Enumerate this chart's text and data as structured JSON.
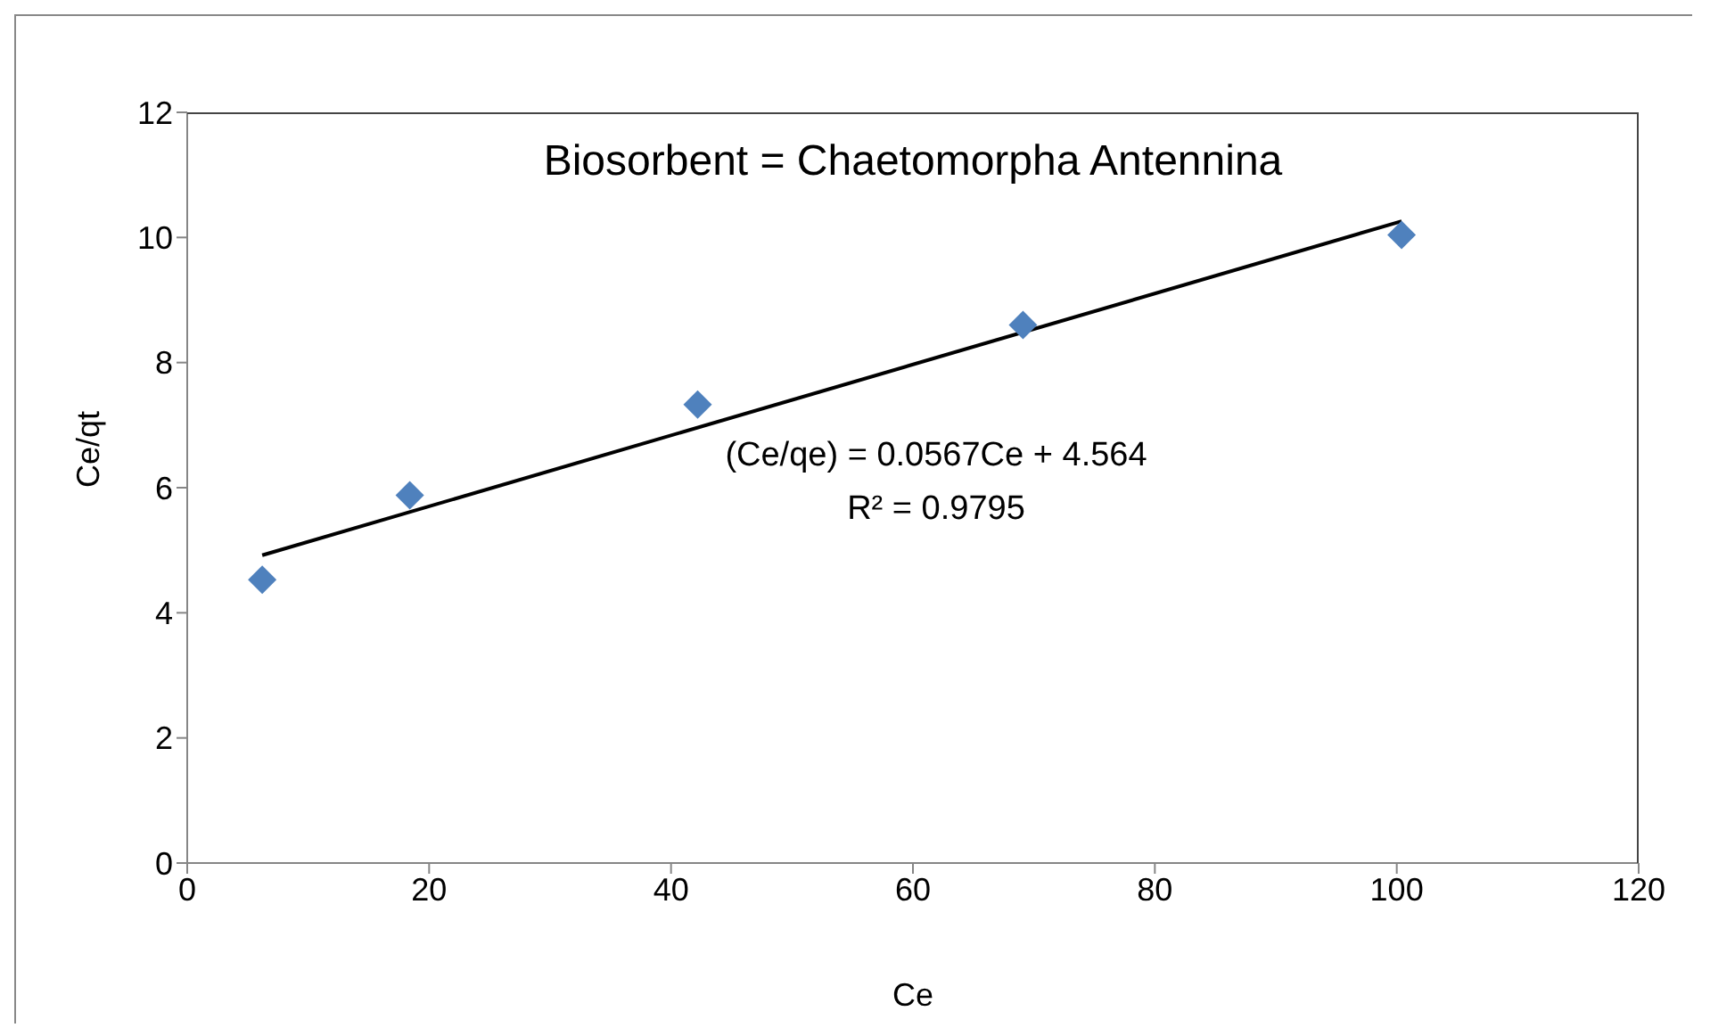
{
  "chart_data": {
    "type": "scatter",
    "title": "Biosorbent = Chaetomorpha Antennina",
    "xlabel": "Ce",
    "ylabel": "Ce/qt",
    "annotations": [
      "(Ce/qe) = 0.0567Ce + 4.564",
      "R² = 0.9795"
    ],
    "series": [
      {
        "color": "#4f81bd",
        "x": [
          6.2,
          18.4,
          42.2,
          69.1,
          100.4
        ],
        "values": [
          4.53,
          5.88,
          7.33,
          8.6,
          10.04
        ],
        "marker": "diamond"
      },
      {
        "type": "line",
        "color": "#000000",
        "x": [
          6.2,
          100.4
        ],
        "values": [
          4.92,
          10.26
        ],
        "marker": "none",
        "line_style": "solid"
      }
    ],
    "xlim": [
      0,
      120
    ],
    "xticks": [
      0,
      20,
      40,
      60,
      80,
      100,
      120
    ],
    "ylim": [
      0,
      12
    ],
    "yticks": [
      0,
      2,
      4,
      6,
      8,
      10,
      12
    ],
    "grid": false,
    "legend": false
  }
}
